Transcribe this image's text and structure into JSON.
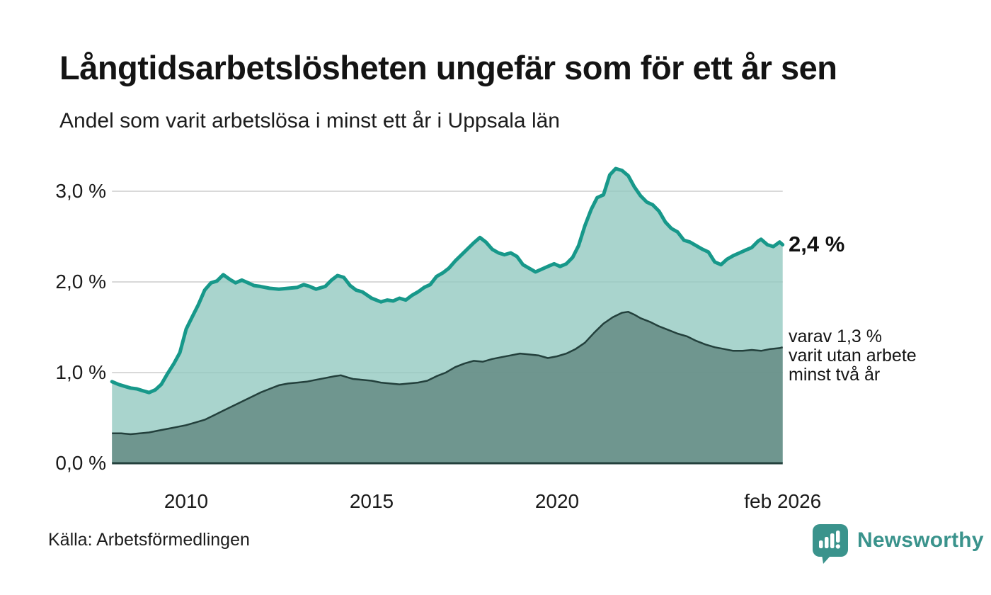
{
  "header": {
    "title": "Långtidsarbetslösheten ungefär som för ett år sen",
    "subtitle": "Andel som varit arbetslösa i minst ett år i Uppsala län"
  },
  "annotations": {
    "latest": "2,4 %",
    "subset_lines": [
      "varav 1,3 %",
      "varit utan arbete",
      "minst två år"
    ]
  },
  "footer": {
    "source": "Källa: Arbetsförmedlingen",
    "brand": "Newsworthy"
  },
  "colors": {
    "title_text": "#141414",
    "axis_text": "#1a1a1a",
    "gridline": "#d9d9d9",
    "total_line": "#17988a",
    "total_fill": "rgba(145,200,191,0.78)",
    "subset_line": "#23403c",
    "subset_fill": "rgba(101,139,132,0.85)",
    "baseline": "#23403c",
    "brand_teal": "#3a938c"
  },
  "chart_data": {
    "type": "area",
    "title": "Långtidsarbetslösheten ungefär som för ett år sen",
    "subtitle": "Andel som varit arbetslösa i minst ett år i Uppsala län",
    "unit": "% av arbetskraften",
    "x_range": [
      2008.0,
      2026.083
    ],
    "y_range": [
      0,
      3.4
    ],
    "grid": "horizontal",
    "legend_position": "right-annotations",
    "x_axis": {
      "ticks": [
        {
          "x": 2010,
          "label": "2010"
        },
        {
          "x": 2015,
          "label": "2015"
        },
        {
          "x": 2020,
          "label": "2020"
        },
        {
          "x": 2026.083,
          "label": "feb 2026"
        }
      ]
    },
    "y_axis": {
      "ticks": [
        {
          "v": 0,
          "label": "0,0 %"
        },
        {
          "v": 1,
          "label": "1,0 %"
        },
        {
          "v": 2,
          "label": "2,0 %"
        },
        {
          "v": 3,
          "label": "3,0 %"
        }
      ]
    },
    "series": [
      {
        "name": "Arbetslösa minst ett år",
        "latest_label": "2,4 %",
        "latest_value": 2.4,
        "points": [
          [
            2008.0,
            0.9
          ],
          [
            2008.17,
            0.87
          ],
          [
            2008.33,
            0.85
          ],
          [
            2008.5,
            0.83
          ],
          [
            2008.67,
            0.82
          ],
          [
            2008.83,
            0.8
          ],
          [
            2009.0,
            0.78
          ],
          [
            2009.17,
            0.81
          ],
          [
            2009.33,
            0.87
          ],
          [
            2009.5,
            0.99
          ],
          [
            2009.67,
            1.1
          ],
          [
            2009.83,
            1.22
          ],
          [
            2010.0,
            1.48
          ],
          [
            2010.17,
            1.62
          ],
          [
            2010.33,
            1.75
          ],
          [
            2010.5,
            1.91
          ],
          [
            2010.67,
            1.99
          ],
          [
            2010.83,
            2.01
          ],
          [
            2011.0,
            2.08
          ],
          [
            2011.17,
            2.03
          ],
          [
            2011.33,
            1.99
          ],
          [
            2011.5,
            2.02
          ],
          [
            2011.67,
            1.99
          ],
          [
            2011.83,
            1.96
          ],
          [
            2012.0,
            1.95
          ],
          [
            2012.25,
            1.93
          ],
          [
            2012.5,
            1.92
          ],
          [
            2012.75,
            1.93
          ],
          [
            2013.0,
            1.94
          ],
          [
            2013.17,
            1.97
          ],
          [
            2013.33,
            1.95
          ],
          [
            2013.5,
            1.92
          ],
          [
            2013.75,
            1.95
          ],
          [
            2013.92,
            2.02
          ],
          [
            2014.08,
            2.07
          ],
          [
            2014.25,
            2.05
          ],
          [
            2014.42,
            1.96
          ],
          [
            2014.58,
            1.91
          ],
          [
            2014.75,
            1.89
          ],
          [
            2015.0,
            1.82
          ],
          [
            2015.25,
            1.78
          ],
          [
            2015.42,
            1.8
          ],
          [
            2015.58,
            1.79
          ],
          [
            2015.75,
            1.82
          ],
          [
            2015.92,
            1.8
          ],
          [
            2016.08,
            1.85
          ],
          [
            2016.25,
            1.89
          ],
          [
            2016.42,
            1.94
          ],
          [
            2016.58,
            1.97
          ],
          [
            2016.75,
            2.06
          ],
          [
            2016.92,
            2.1
          ],
          [
            2017.08,
            2.15
          ],
          [
            2017.25,
            2.23
          ],
          [
            2017.5,
            2.33
          ],
          [
            2017.75,
            2.43
          ],
          [
            2017.92,
            2.49
          ],
          [
            2018.08,
            2.44
          ],
          [
            2018.25,
            2.36
          ],
          [
            2018.42,
            2.32
          ],
          [
            2018.58,
            2.3
          ],
          [
            2018.75,
            2.32
          ],
          [
            2018.92,
            2.28
          ],
          [
            2019.08,
            2.19
          ],
          [
            2019.25,
            2.15
          ],
          [
            2019.42,
            2.11
          ],
          [
            2019.58,
            2.14
          ],
          [
            2019.75,
            2.17
          ],
          [
            2019.92,
            2.2
          ],
          [
            2020.08,
            2.17
          ],
          [
            2020.25,
            2.2
          ],
          [
            2020.42,
            2.27
          ],
          [
            2020.58,
            2.4
          ],
          [
            2020.75,
            2.62
          ],
          [
            2020.92,
            2.8
          ],
          [
            2021.08,
            2.93
          ],
          [
            2021.25,
            2.96
          ],
          [
            2021.42,
            3.18
          ],
          [
            2021.58,
            3.25
          ],
          [
            2021.75,
            3.23
          ],
          [
            2021.92,
            3.17
          ],
          [
            2022.08,
            3.05
          ],
          [
            2022.25,
            2.95
          ],
          [
            2022.42,
            2.88
          ],
          [
            2022.58,
            2.85
          ],
          [
            2022.75,
            2.78
          ],
          [
            2022.92,
            2.66
          ],
          [
            2023.08,
            2.59
          ],
          [
            2023.25,
            2.55
          ],
          [
            2023.42,
            2.46
          ],
          [
            2023.58,
            2.44
          ],
          [
            2023.75,
            2.4
          ],
          [
            2023.92,
            2.36
          ],
          [
            2024.08,
            2.33
          ],
          [
            2024.25,
            2.22
          ],
          [
            2024.42,
            2.19
          ],
          [
            2024.58,
            2.25
          ],
          [
            2024.75,
            2.29
          ],
          [
            2024.92,
            2.32
          ],
          [
            2025.08,
            2.35
          ],
          [
            2025.25,
            2.38
          ],
          [
            2025.42,
            2.45
          ],
          [
            2025.5,
            2.47
          ],
          [
            2025.67,
            2.41
          ],
          [
            2025.83,
            2.39
          ],
          [
            2026.0,
            2.44
          ],
          [
            2026.083,
            2.41
          ]
        ]
      },
      {
        "name": "Arbetslösa minst två år",
        "latest_label": "varav 1,3 % varit utan arbete minst två år",
        "latest_value": 1.3,
        "points": [
          [
            2008.0,
            0.33
          ],
          [
            2008.25,
            0.33
          ],
          [
            2008.5,
            0.32
          ],
          [
            2008.75,
            0.33
          ],
          [
            2009.0,
            0.34
          ],
          [
            2009.25,
            0.36
          ],
          [
            2009.5,
            0.38
          ],
          [
            2009.75,
            0.4
          ],
          [
            2010.0,
            0.42
          ],
          [
            2010.25,
            0.45
          ],
          [
            2010.5,
            0.48
          ],
          [
            2010.75,
            0.53
          ],
          [
            2011.0,
            0.58
          ],
          [
            2011.25,
            0.63
          ],
          [
            2011.5,
            0.68
          ],
          [
            2011.75,
            0.73
          ],
          [
            2012.0,
            0.78
          ],
          [
            2012.25,
            0.82
          ],
          [
            2012.5,
            0.86
          ],
          [
            2012.75,
            0.88
          ],
          [
            2013.0,
            0.89
          ],
          [
            2013.25,
            0.9
          ],
          [
            2013.5,
            0.92
          ],
          [
            2013.75,
            0.94
          ],
          [
            2014.0,
            0.96
          ],
          [
            2014.17,
            0.97
          ],
          [
            2014.33,
            0.95
          ],
          [
            2014.5,
            0.93
          ],
          [
            2014.75,
            0.92
          ],
          [
            2015.0,
            0.91
          ],
          [
            2015.25,
            0.89
          ],
          [
            2015.5,
            0.88
          ],
          [
            2015.75,
            0.87
          ],
          [
            2016.0,
            0.88
          ],
          [
            2016.25,
            0.89
          ],
          [
            2016.5,
            0.91
          ],
          [
            2016.75,
            0.96
          ],
          [
            2017.0,
            1.0
          ],
          [
            2017.25,
            1.06
          ],
          [
            2017.5,
            1.1
          ],
          [
            2017.75,
            1.13
          ],
          [
            2018.0,
            1.12
          ],
          [
            2018.25,
            1.15
          ],
          [
            2018.5,
            1.17
          ],
          [
            2018.75,
            1.19
          ],
          [
            2019.0,
            1.21
          ],
          [
            2019.25,
            1.2
          ],
          [
            2019.5,
            1.19
          ],
          [
            2019.75,
            1.16
          ],
          [
            2020.0,
            1.18
          ],
          [
            2020.25,
            1.21
          ],
          [
            2020.5,
            1.26
          ],
          [
            2020.75,
            1.33
          ],
          [
            2021.0,
            1.44
          ],
          [
            2021.25,
            1.54
          ],
          [
            2021.5,
            1.61
          ],
          [
            2021.75,
            1.66
          ],
          [
            2021.92,
            1.67
          ],
          [
            2022.08,
            1.64
          ],
          [
            2022.25,
            1.6
          ],
          [
            2022.5,
            1.56
          ],
          [
            2022.75,
            1.51
          ],
          [
            2023.0,
            1.47
          ],
          [
            2023.25,
            1.43
          ],
          [
            2023.5,
            1.4
          ],
          [
            2023.75,
            1.35
          ],
          [
            2024.0,
            1.31
          ],
          [
            2024.25,
            1.28
          ],
          [
            2024.5,
            1.26
          ],
          [
            2024.75,
            1.24
          ],
          [
            2025.0,
            1.24
          ],
          [
            2025.25,
            1.25
          ],
          [
            2025.5,
            1.24
          ],
          [
            2025.75,
            1.26
          ],
          [
            2026.0,
            1.27
          ],
          [
            2026.083,
            1.28
          ]
        ]
      }
    ]
  }
}
